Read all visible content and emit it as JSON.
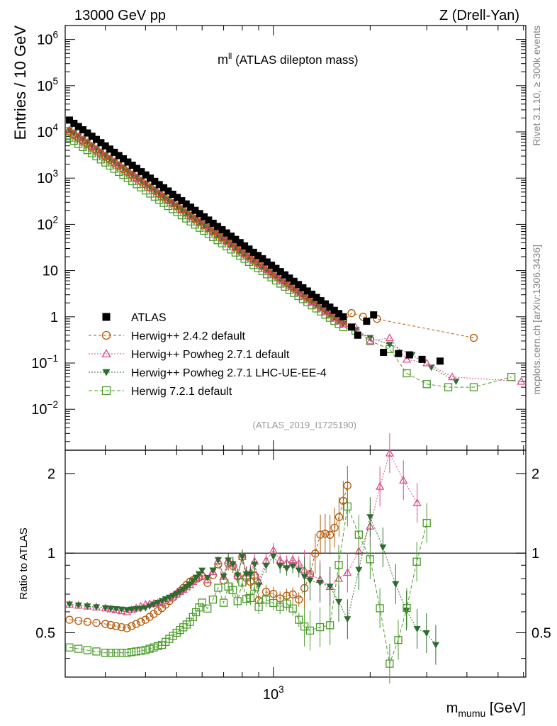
{
  "header": {
    "beam": "13000 GeV pp",
    "process": "Z (Drell-Yan)"
  },
  "side_labels": {
    "rivet": "Rivet 3.1.10, ≥ 300k events",
    "mcplots": "mcplots.cern.ch [arXiv:1306.3436]"
  },
  "chart_data": [
    {
      "type": "scatter",
      "panel": "main",
      "title_main": "m",
      "title_sup": "ll",
      "title_rest": " (ATLAS dilepton mass)",
      "analysis_id": "(ATLAS_2019_I1725190)",
      "ylabel": "Entries / 10 GeV",
      "xscale": "log",
      "yscale": "log",
      "xlim": [
        225,
        6100
      ],
      "ylim": [
        0.0013,
        2000000
      ],
      "yticks": [
        {
          "v": 0.01,
          "base": "10",
          "exp": "−2"
        },
        {
          "v": 0.1,
          "base": "10",
          "exp": "−1"
        },
        {
          "v": 1,
          "base": "1",
          "exp": ""
        },
        {
          "v": 10,
          "base": "10",
          "exp": ""
        },
        {
          "v": 100,
          "base": "10",
          "exp": "2"
        },
        {
          "v": 1000,
          "base": "10",
          "exp": "3"
        },
        {
          "v": 10000,
          "base": "10",
          "exp": "4"
        },
        {
          "v": 100000,
          "base": "10",
          "exp": "5"
        },
        {
          "v": 1000000,
          "base": "10",
          "exp": "6"
        }
      ],
      "legend_position": "lower-left",
      "series": [
        {
          "name": "ATLAS",
          "color": "#000000",
          "marker": "filled-square",
          "x_start": 232,
          "x_end": 1650,
          "y_start": 18000,
          "y_end": 1.0,
          "tail": [
            [
              1750,
              0.6
            ],
            [
              1830,
              0.4
            ],
            [
              1950,
              0.8
            ],
            [
              2050,
              1.1
            ],
            [
              2200,
              0.17
            ],
            [
              2450,
              0.16
            ],
            [
              2650,
              0.15
            ],
            [
              2900,
              0.12
            ],
            [
              3300,
              0.11
            ]
          ]
        },
        {
          "name": "Herwig++ 2.4.2 default",
          "color": "#b35806",
          "marker": "open-circle",
          "x_start": 232,
          "x_end": 1650,
          "y_start": 10000,
          "y_end": 0.8,
          "tail": [
            [
              1750,
              1.2
            ],
            [
              1900,
              1.0
            ],
            [
              2100,
              0.9
            ],
            [
              4200,
              0.35
            ]
          ]
        },
        {
          "name": "Herwig++ Powheg 2.7.1 default",
          "color": "#de4b8c",
          "marker": "open-triangle",
          "x_start": 232,
          "x_end": 1650,
          "y_start": 11000,
          "y_end": 0.7,
          "tail": [
            [
              1800,
              0.6
            ],
            [
              2000,
              0.3
            ],
            [
              2300,
              0.35
            ],
            [
              2600,
              0.12
            ],
            [
              3000,
              0.1
            ],
            [
              3600,
              0.05
            ],
            [
              5900,
              0.04
            ]
          ]
        },
        {
          "name": "Herwig++ Powheg 2.7.1 LHC-UE-EE-4",
          "color": "#2e6b2e",
          "marker": "filled-triangle-down",
          "x_start": 232,
          "x_end": 1650,
          "y_start": 11000,
          "y_end": 0.7,
          "tail": [
            [
              1800,
              0.5
            ],
            [
              2000,
              0.35
            ],
            [
              2300,
              0.25
            ],
            [
              2700,
              0.15
            ],
            [
              3100,
              0.08
            ],
            [
              3700,
              0.04
            ]
          ]
        },
        {
          "name": "Herwig 7.2.1 default",
          "color": "#4b9c2a",
          "marker": "open-square",
          "x_start": 232,
          "x_end": 1650,
          "y_start": 7500,
          "y_end": 0.6,
          "tail": [
            [
              1800,
              0.5
            ],
            [
              2000,
              0.3
            ],
            [
              2300,
              0.2
            ],
            [
              2600,
              0.06
            ],
            [
              3000,
              0.035
            ],
            [
              3500,
              0.03
            ],
            [
              4200,
              0.03
            ],
            [
              5500,
              0.05
            ]
          ]
        }
      ]
    },
    {
      "type": "scatter",
      "panel": "ratio",
      "ylabel": "Ratio to ATLAS",
      "xlabel_main": "m",
      "xlabel_sub": "mumu",
      "xlabel_unit": " [GeV]",
      "xscale": "log",
      "yscale": "log",
      "xlim": [
        225,
        6100
      ],
      "ylim": [
        0.34,
        2.45
      ],
      "yticks": [
        0.5,
        1,
        2
      ],
      "xticks": [
        {
          "v": 1000,
          "base": "10",
          "exp": "3"
        }
      ],
      "reference_line": 1,
      "series": [
        {
          "name": "Herwig++ 2.4.2 default",
          "points": [
            [
              232,
              0.56
            ],
            [
              300,
              0.54
            ],
            [
              350,
              0.52
            ],
            [
              400,
              0.56
            ],
            [
              450,
              0.62
            ],
            [
              500,
              0.7
            ],
            [
              550,
              0.78
            ],
            [
              600,
              0.82
            ],
            [
              700,
              0.85
            ],
            [
              800,
              0.9
            ],
            [
              900,
              0.72
            ],
            [
              1000,
              0.65
            ],
            [
              1100,
              0.75
            ],
            [
              1200,
              0.62
            ],
            [
              1300,
              0.9
            ],
            [
              1400,
              1.1
            ],
            [
              1500,
              1.25
            ],
            [
              1600,
              1.3
            ],
            [
              1700,
              1.8
            ]
          ]
        },
        {
          "name": "Herwig++ Powheg 2.7.1 default",
          "points": [
            [
              232,
              0.64
            ],
            [
              300,
              0.62
            ],
            [
              350,
              0.6
            ],
            [
              400,
              0.64
            ],
            [
              450,
              0.65
            ],
            [
              500,
              0.7
            ],
            [
              550,
              0.76
            ],
            [
              600,
              0.84
            ],
            [
              700,
              0.88
            ],
            [
              800,
              0.9
            ],
            [
              900,
              0.85
            ],
            [
              1000,
              0.95
            ],
            [
              1100,
              1.0
            ],
            [
              1200,
              0.85
            ],
            [
              1300,
              0.9
            ],
            [
              1500,
              0.7
            ],
            [
              1700,
              0.9
            ],
            [
              2000,
              1.2
            ],
            [
              2300,
              2.5
            ],
            [
              2800,
              1.55
            ]
          ]
        },
        {
          "name": "Herwig++ Powheg 2.7.1 LHC-UE-EE-4",
          "points": [
            [
              232,
              0.64
            ],
            [
              300,
              0.62
            ],
            [
              350,
              0.61
            ],
            [
              400,
              0.62
            ],
            [
              450,
              0.66
            ],
            [
              500,
              0.7
            ],
            [
              550,
              0.76
            ],
            [
              600,
              0.86
            ],
            [
              700,
              0.88
            ],
            [
              800,
              0.9
            ],
            [
              900,
              0.82
            ],
            [
              1000,
              0.9
            ],
            [
              1100,
              0.95
            ],
            [
              1200,
              0.8
            ],
            [
              1300,
              0.85
            ],
            [
              1500,
              0.7
            ],
            [
              1700,
              0.6
            ],
            [
              2000,
              1.3
            ],
            [
              2400,
              0.8
            ],
            [
              2800,
              0.5
            ],
            [
              3200,
              0.45
            ]
          ]
        },
        {
          "name": "Herwig 7.2.1 default",
          "points": [
            [
              232,
              0.44
            ],
            [
              300,
              0.42
            ],
            [
              350,
              0.42
            ],
            [
              400,
              0.43
            ],
            [
              450,
              0.45
            ],
            [
              500,
              0.5
            ],
            [
              550,
              0.55
            ],
            [
              600,
              0.65
            ],
            [
              700,
              0.7
            ],
            [
              800,
              0.72
            ],
            [
              900,
              0.68
            ],
            [
              1000,
              0.6
            ],
            [
              1100,
              0.7
            ],
            [
              1200,
              0.52
            ],
            [
              1300,
              0.55
            ],
            [
              1500,
              0.5
            ],
            [
              1700,
              1.6
            ],
            [
              2000,
              0.9
            ],
            [
              2300,
              0.4
            ],
            [
              2600,
              0.6
            ],
            [
              3000,
              1.3
            ]
          ]
        }
      ]
    }
  ]
}
